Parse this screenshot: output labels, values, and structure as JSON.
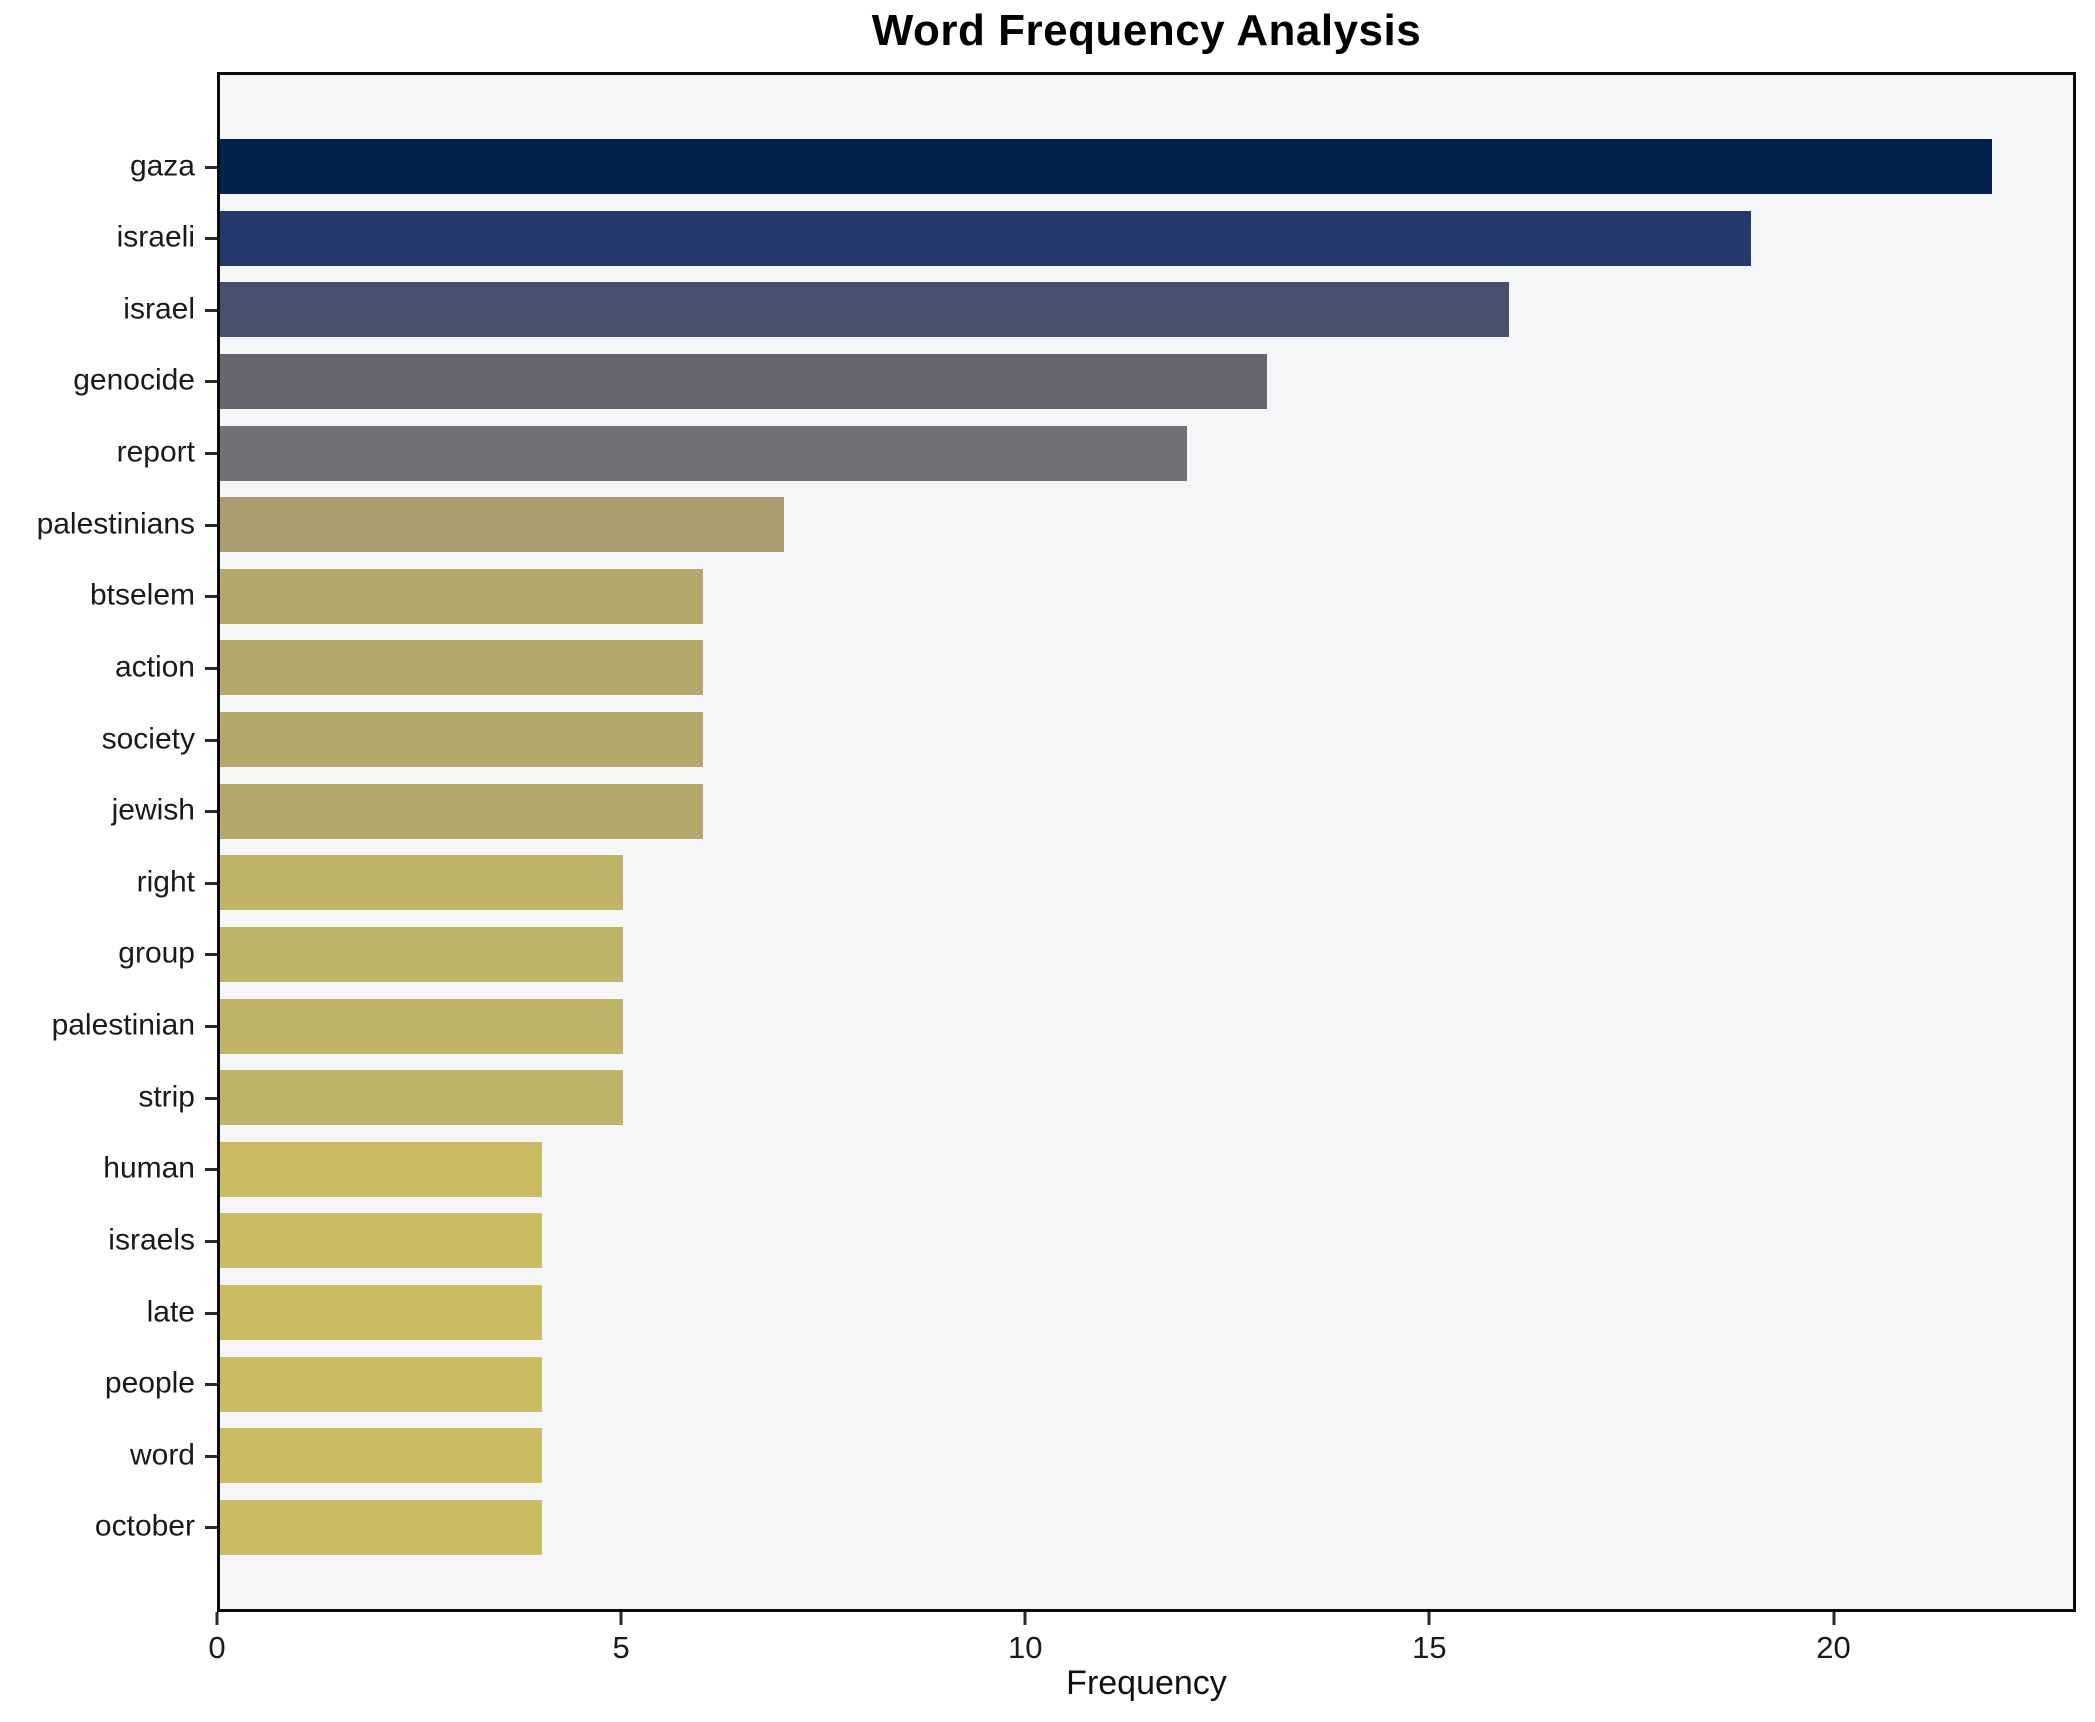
{
  "title": "Word Frequency Analysis",
  "chart_data": {
    "type": "bar",
    "orientation": "horizontal",
    "title": "Word Frequency Analysis",
    "xlabel": "Frequency",
    "ylabel": "",
    "xlim": [
      0,
      23
    ],
    "xticks": [
      0,
      5,
      10,
      15,
      20
    ],
    "grid": false,
    "legend_position": "none",
    "plot_background": "#f5f6f7",
    "axis_color": "#0b0b0b",
    "categories": [
      "gaza",
      "israeli",
      "israel",
      "genocide",
      "report",
      "palestinians",
      "btselem",
      "action",
      "society",
      "jewish",
      "right",
      "group",
      "palestinian",
      "strip",
      "human",
      "israels",
      "late",
      "people",
      "word",
      "october"
    ],
    "values": [
      22,
      19,
      16,
      13,
      12,
      7,
      6,
      6,
      6,
      6,
      5,
      5,
      5,
      5,
      4,
      4,
      4,
      4,
      4,
      4
    ],
    "colors": [
      "#02234e",
      "#24396b",
      "#47506c",
      "#65666e",
      "#707174",
      "#a99f6e",
      "#b2a86b",
      "#b2a86b",
      "#b2a86b",
      "#b2a86b",
      "#bfb367",
      "#bfb367",
      "#bfb367",
      "#bfb367",
      "#cabc60",
      "#cabc60",
      "#cabc60",
      "#cabc60",
      "#cabc60",
      "#cabc60"
    ]
  }
}
